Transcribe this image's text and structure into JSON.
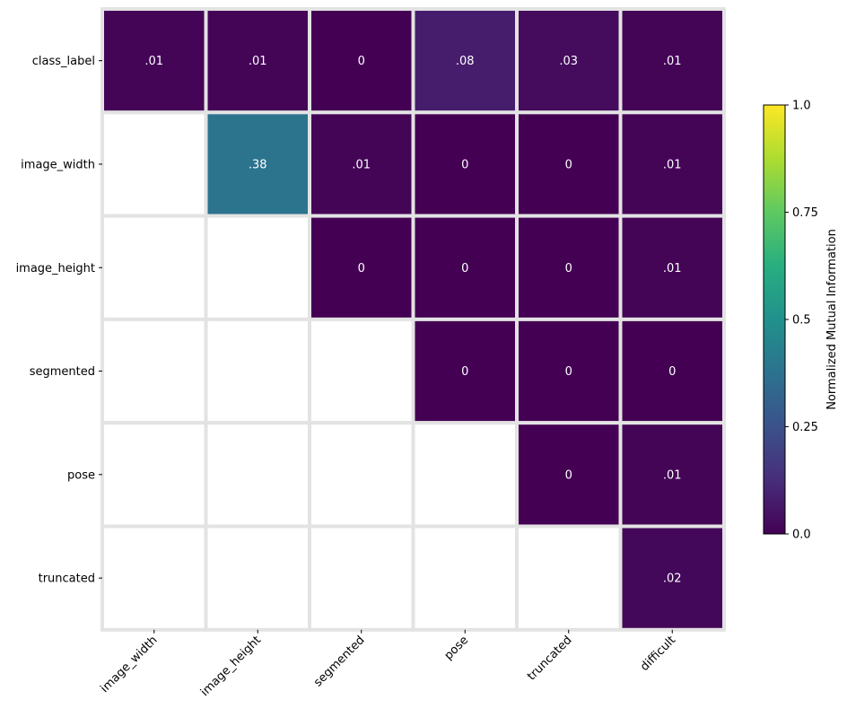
{
  "chart_data": {
    "type": "heatmap",
    "rows": [
      "class_label",
      "image_width",
      "image_height",
      "segmented",
      "pose",
      "truncated"
    ],
    "columns": [
      "image_width",
      "image_height",
      "segmented",
      "pose",
      "truncated",
      "difficult"
    ],
    "values": [
      [
        0.01,
        0.01,
        0,
        0.08,
        0.03,
        0.01
      ],
      [
        null,
        0.38,
        0.01,
        0,
        0,
        0.01
      ],
      [
        null,
        null,
        0,
        0,
        0,
        0.01
      ],
      [
        null,
        null,
        null,
        0,
        0,
        0
      ],
      [
        null,
        null,
        null,
        null,
        0,
        0.01
      ],
      [
        null,
        null,
        null,
        null,
        null,
        0.02
      ]
    ],
    "cell_labels": [
      [
        ".01",
        ".01",
        "0",
        ".08",
        ".03",
        ".01"
      ],
      [
        null,
        ".38",
        ".01",
        "0",
        "0",
        ".01"
      ],
      [
        null,
        null,
        "0",
        "0",
        "0",
        ".01"
      ],
      [
        null,
        null,
        null,
        "0",
        "0",
        "0"
      ],
      [
        null,
        null,
        null,
        null,
        "0",
        ".01"
      ],
      [
        null,
        null,
        null,
        null,
        null,
        ".02"
      ]
    ],
    "colormap": "viridis",
    "vmin": 0,
    "vmax": 1,
    "colorbar": {
      "label": "Normalized Mutual Information",
      "ticks": [
        0.0,
        0.25,
        0.5,
        0.75,
        1.0
      ],
      "tick_labels": [
        "0.0",
        "0.25",
        "0.5",
        "0.75",
        "1.0"
      ]
    },
    "grid_color": "#e3e3e3"
  }
}
